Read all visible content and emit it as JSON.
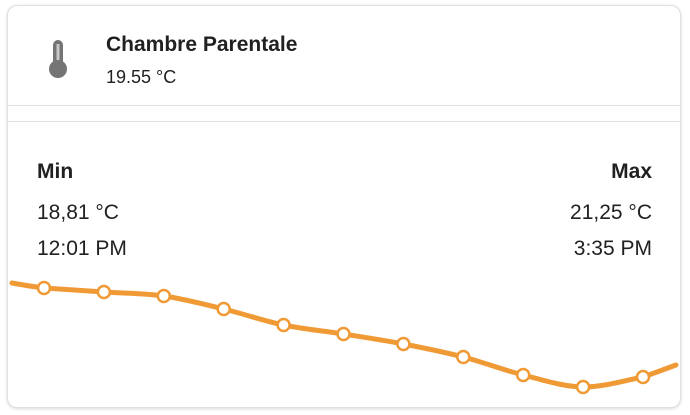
{
  "header": {
    "title": "Chambre Parentale",
    "state": "19.55 °C"
  },
  "min": {
    "label": "Min",
    "value": "18,81 °C",
    "time": "12:01 PM"
  },
  "max": {
    "label": "Max",
    "value": "21,25 °C",
    "time": "3:35 PM"
  },
  "chart_data": {
    "type": "line",
    "color": "#f09a36",
    "values": [
      20.44,
      20.4,
      20.36,
      20.23,
      20.07,
      19.98,
      19.88,
      19.75,
      19.57,
      19.45,
      19.55
    ]
  }
}
